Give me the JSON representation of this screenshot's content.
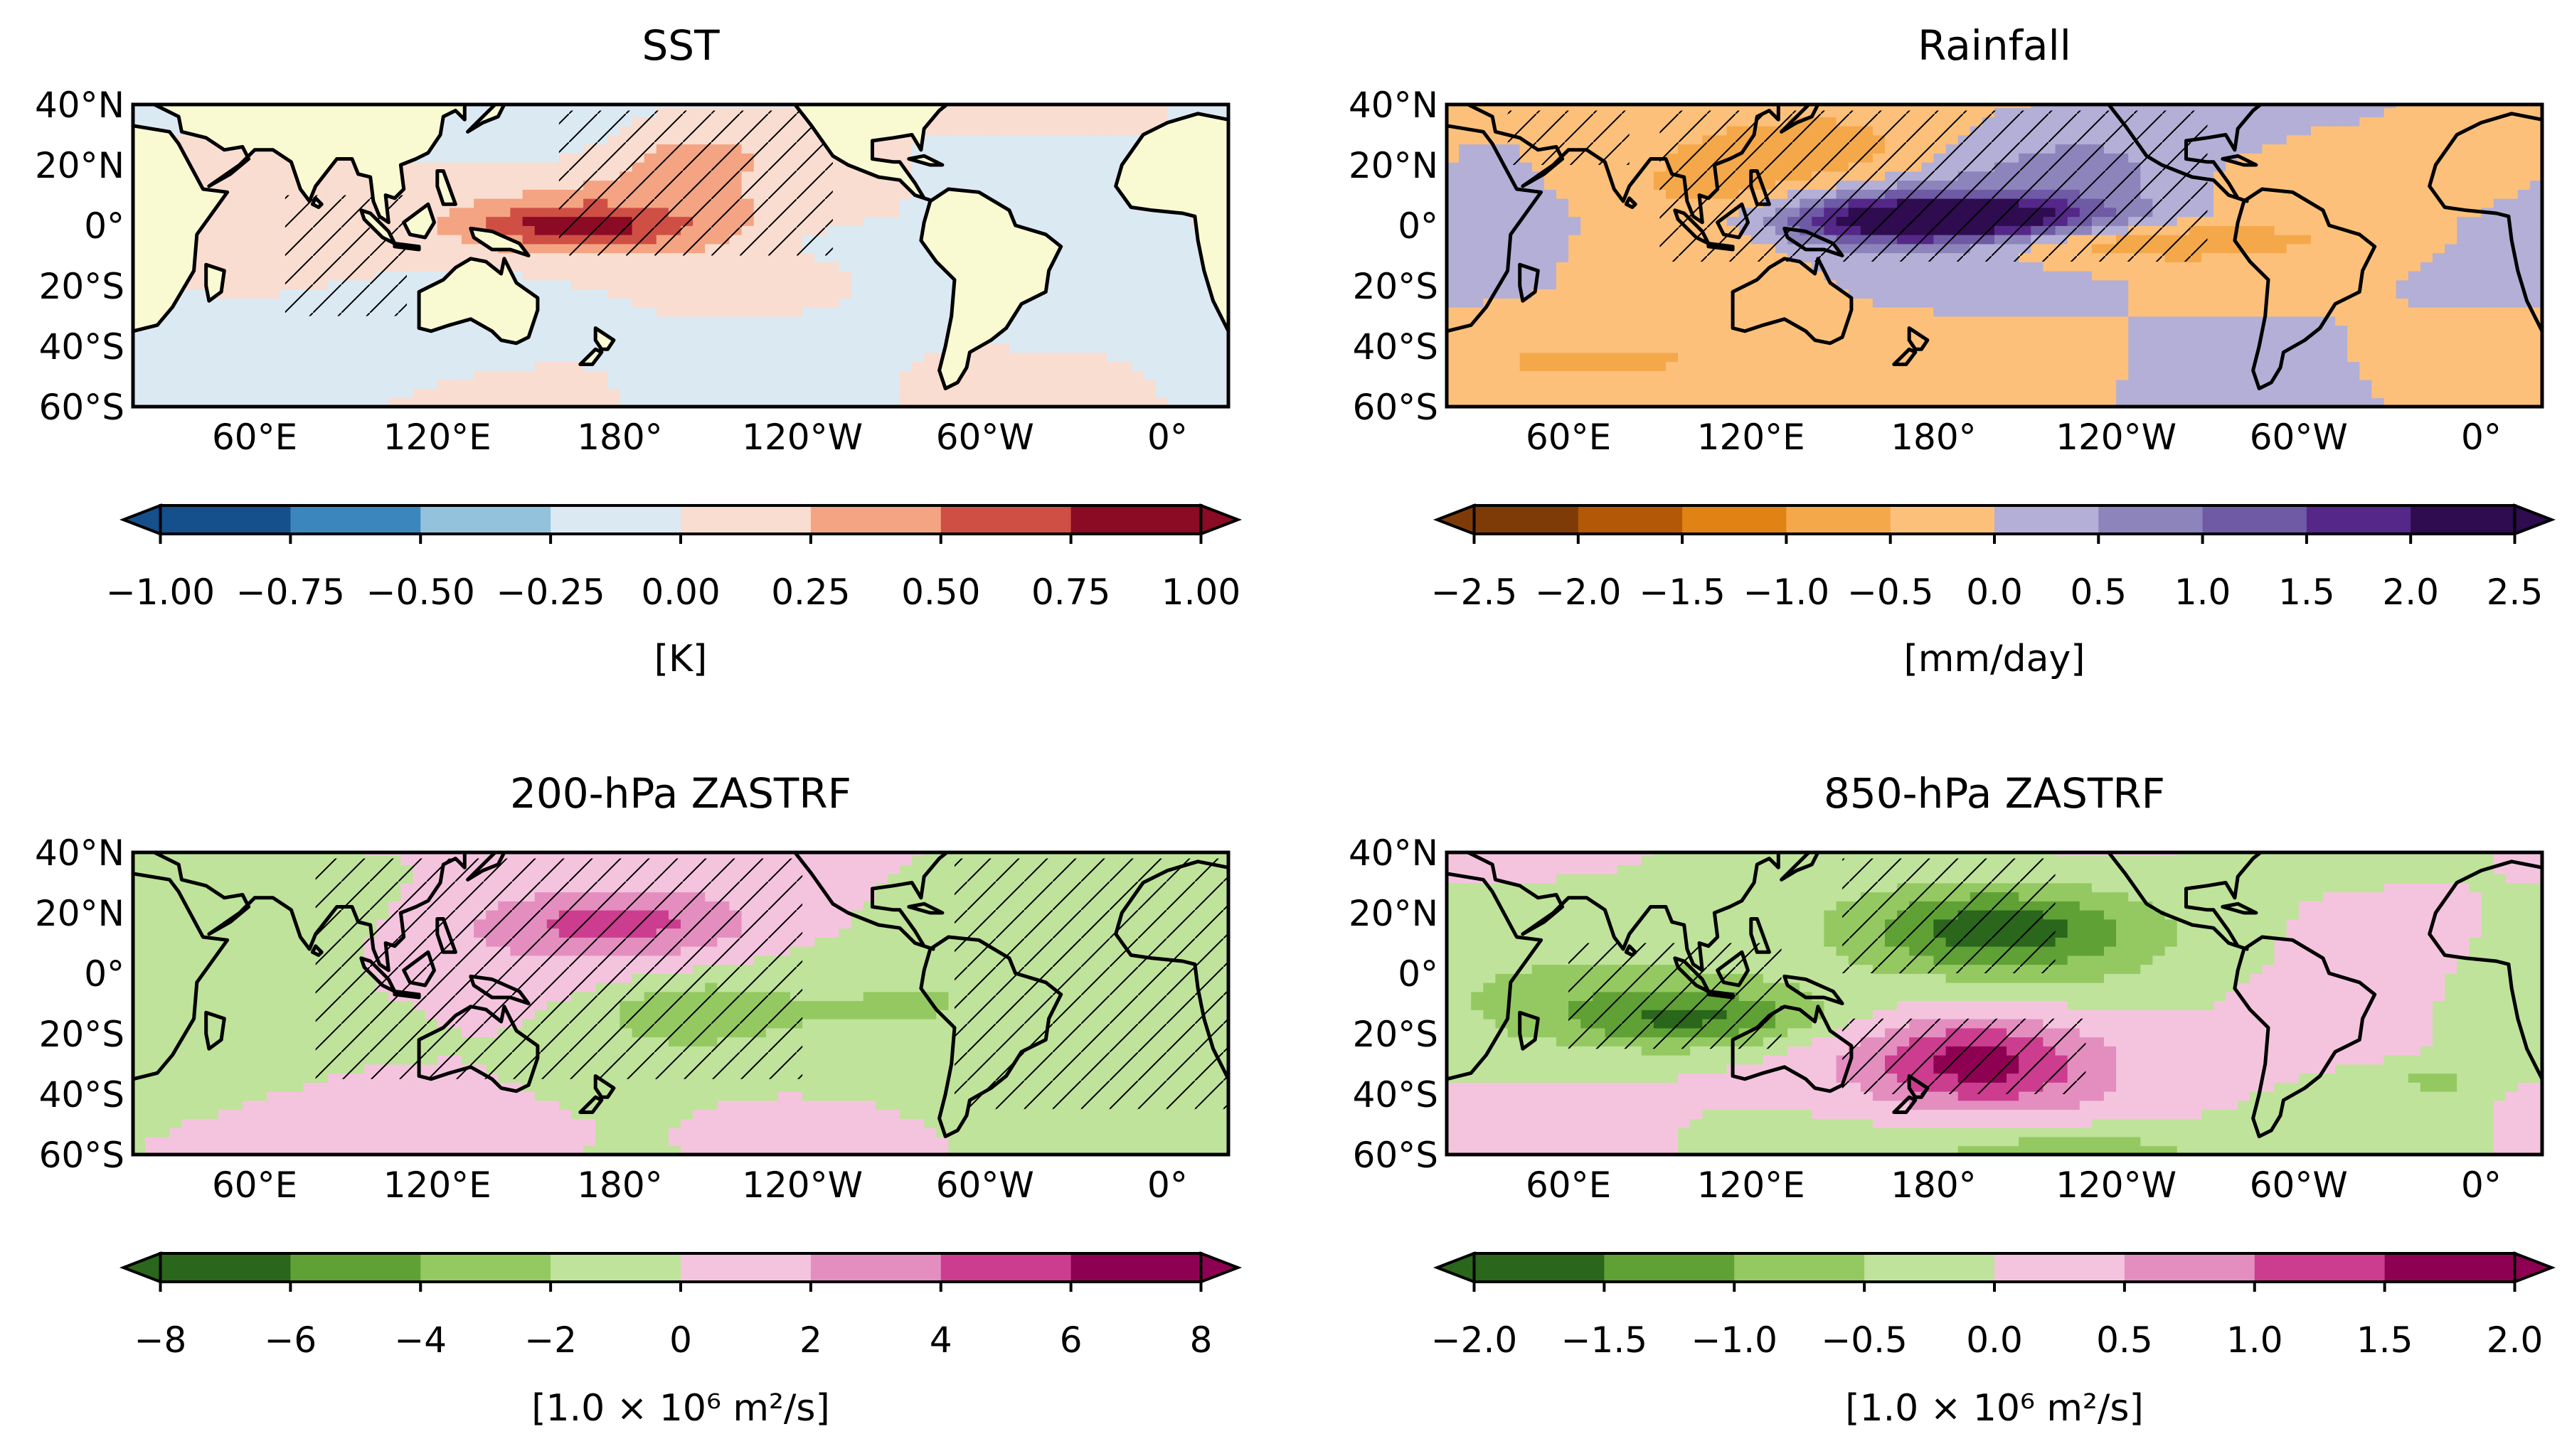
{
  "figure": {
    "description_hidden": false
  },
  "colors": {
    "rdbu": [
      "#154f8c",
      "#3b86bc",
      "#93c3dc",
      "#dbe9f3",
      "#f9ddd0",
      "#f4a482",
      "#cf4f44",
      "#8b0a24"
    ],
    "rdbu_zero_land": "#fafad2",
    "puor": [
      "#7e3b08",
      "#b35806",
      "#e08214",
      "#f4a84a",
      "#fdc07a",
      "#b3afd6",
      "#8c84bb",
      "#6e5aa5",
      "#542789",
      "#2e0c4f"
    ],
    "piyg": [
      "#2a661b",
      "#5fa135",
      "#94c962",
      "#bfe39a",
      "#f4c4de",
      "#e48ec0",
      "#cc3d8f",
      "#8e0152"
    ],
    "coast": "#000000",
    "hatch": "#000000"
  },
  "chart_data": [
    {
      "type": "heatmap",
      "title": "SST",
      "lon_labels": [
        "60°E",
        "120°E",
        "180°",
        "120°W",
        "60°W",
        "0°"
      ],
      "lat_labels": [
        "40°N",
        "20°N",
        "0°",
        "20°S",
        "40°S",
        "60°S"
      ],
      "xlim": [
        20,
        380
      ],
      "ylim": [
        -60,
        40
      ],
      "colorbar": {
        "ticks": [
          "−1.00",
          "−0.75",
          "−0.50",
          "−0.25",
          "0.00",
          "0.25",
          "0.50",
          "0.75",
          "1.00"
        ],
        "levels": [
          -1.0,
          -0.75,
          -0.5,
          -0.25,
          0.0,
          0.25,
          0.5,
          0.75,
          1.0
        ],
        "label": "[K]",
        "palette": "rdbu"
      },
      "fields": [
        {
          "lon": 165,
          "lat": 0,
          "value": 0.62,
          "sx": 25,
          "sy": 5
        },
        {
          "lon": 165,
          "lat": 3,
          "value": 0.35,
          "sx": 45,
          "sy": 12
        },
        {
          "lon": 200,
          "lat": 25,
          "value": 0.3,
          "sx": 25,
          "sy": 8
        },
        {
          "lon": 160,
          "lat": 30,
          "value": -0.25,
          "sx": 25,
          "sy": 8
        },
        {
          "lon": 90,
          "lat": -42,
          "value": -0.15,
          "sx": 35,
          "sy": 10
        },
        {
          "lon": 330,
          "lat": -20,
          "value": -0.12,
          "sx": 40,
          "sy": 15
        },
        {
          "lon": 140,
          "lat": -30,
          "value": -0.1,
          "sx": 25,
          "sy": 10
        },
        {
          "lon": 250,
          "lat": -5,
          "value": -0.15,
          "sx": 15,
          "sy": 5
        }
      ],
      "base": 0.08,
      "hatch": [
        {
          "lon0": 160,
          "lon1": 250,
          "lat0": -10,
          "lat1": 38
        },
        {
          "lon0": 70,
          "lon1": 110,
          "lat0": -30,
          "lat1": 10
        }
      ]
    },
    {
      "type": "heatmap",
      "title": "Rainfall",
      "lon_labels": [
        "60°E",
        "120°E",
        "180°",
        "120°W",
        "60°W",
        "0°"
      ],
      "lat_labels": [
        "40°N",
        "20°N",
        "0°",
        "20°S",
        "40°S",
        "60°S"
      ],
      "xlim": [
        20,
        380
      ],
      "ylim": [
        -60,
        40
      ],
      "colorbar": {
        "ticks": [
          "−2.5",
          "−2.0",
          "−1.5",
          "−1.0",
          "−0.5",
          "0.0",
          "0.5",
          "1.0",
          "1.5",
          "2.0",
          "2.5"
        ],
        "levels": [
          -2.5,
          -2.0,
          -1.5,
          -1.0,
          -0.5,
          0.0,
          0.5,
          1.0,
          1.5,
          2.0,
          2.5
        ],
        "label": "[mm/day]",
        "palette": "puor"
      },
      "fields": [
        {
          "lon": 185,
          "lat": 2,
          "value": 2.3,
          "sx": 35,
          "sy": 5
        },
        {
          "lon": 165,
          "lat": 2,
          "value": 1.2,
          "sx": 50,
          "sy": 9
        },
        {
          "lon": 240,
          "lat": -5,
          "value": -1.1,
          "sx": 45,
          "sy": 5
        },
        {
          "lon": 110,
          "lat": 5,
          "value": -0.9,
          "sx": 25,
          "sy": 14
        },
        {
          "lon": 145,
          "lat": 25,
          "value": -0.8,
          "sx": 30,
          "sy": 10
        },
        {
          "lon": 80,
          "lat": -45,
          "value": -0.6,
          "sx": 50,
          "sy": 8
        },
        {
          "lon": 310,
          "lat": 15,
          "value": -0.5,
          "sx": 35,
          "sy": 8
        },
        {
          "lon": 230,
          "lat": 20,
          "value": 0.6,
          "sx": 40,
          "sy": 10
        }
      ],
      "base": 0.1,
      "hatch": [
        {
          "lon0": 90,
          "lon1": 270,
          "lat0": -12,
          "lat1": 38
        },
        {
          "lon0": 40,
          "lon1": 80,
          "lat0": 20,
          "lat1": 38
        }
      ]
    },
    {
      "type": "heatmap",
      "title": "200-hPa ZASTRF",
      "lon_labels": [
        "60°E",
        "120°E",
        "180°",
        "120°W",
        "60°W",
        "0°"
      ],
      "lat_labels": [
        "40°N",
        "20°N",
        "0°",
        "20°S",
        "40°S",
        "60°S"
      ],
      "xlim": [
        20,
        380
      ],
      "ylim": [
        -60,
        40
      ],
      "colorbar": {
        "ticks": [
          "−8",
          "−6",
          "−4",
          "−2",
          "0",
          "2",
          "4",
          "6",
          "8"
        ],
        "levels": [
          -8,
          -6,
          -4,
          -2,
          0,
          2,
          4,
          6,
          8
        ],
        "label": "[1.0 × 10⁶ m²/s]",
        "palette": "piyg"
      },
      "fields": [
        {
          "lon": 180,
          "lat": 17,
          "value": 3.2,
          "sx": 30,
          "sy": 7
        },
        {
          "lon": 175,
          "lat": 12,
          "value": 1.5,
          "sx": 70,
          "sy": 18
        },
        {
          "lon": 200,
          "lat": -13,
          "value": -3.0,
          "sx": 20,
          "sy": 8
        },
        {
          "lon": 225,
          "lat": -10,
          "value": -1.5,
          "sx": 60,
          "sy": 12
        },
        {
          "lon": 60,
          "lat": 25,
          "value": -1.5,
          "sx": 40,
          "sy": 12
        },
        {
          "lon": 320,
          "lat": -5,
          "value": -1.4,
          "sx": 50,
          "sy": 30
        },
        {
          "lon": 100,
          "lat": -55,
          "value": 1.0,
          "sx": 60,
          "sy": 10
        },
        {
          "lon": 40,
          "lat": -30,
          "value": -1.0,
          "sx": 25,
          "sy": 15
        }
      ],
      "base": 0.5,
      "hatch": [
        {
          "lon0": 80,
          "lon1": 240,
          "lat0": -35,
          "lat1": 38
        },
        {
          "lon0": 290,
          "lon1": 380,
          "lat0": -45,
          "lat1": 38
        }
      ]
    },
    {
      "type": "heatmap",
      "title": "850-hPa ZASTRF",
      "lon_labels": [
        "60°E",
        "120°E",
        "180°",
        "120°W",
        "60°W",
        "0°"
      ],
      "lat_labels": [
        "40°N",
        "20°N",
        "0°",
        "20°S",
        "40°S",
        "60°S"
      ],
      "xlim": [
        20,
        380
      ],
      "ylim": [
        -60,
        40
      ],
      "colorbar": {
        "ticks": [
          "−2.0",
          "−1.5",
          "−1.0",
          "−0.5",
          "0.0",
          "0.5",
          "1.0",
          "1.5",
          "2.0"
        ],
        "levels": [
          -2.0,
          -1.5,
          -1.0,
          -0.5,
          0.0,
          0.5,
          1.0,
          1.5,
          2.0
        ],
        "label": "[1.0 × 10⁶ m²/s]",
        "palette": "piyg"
      },
      "fields": [
        {
          "lon": 200,
          "lat": 15,
          "value": -1.2,
          "sx": 30,
          "sy": 9
        },
        {
          "lon": 190,
          "lat": 12,
          "value": -0.6,
          "sx": 55,
          "sy": 15
        },
        {
          "lon": 105,
          "lat": -15,
          "value": -1.2,
          "sx": 30,
          "sy": 7
        },
        {
          "lon": 90,
          "lat": -10,
          "value": -0.6,
          "sx": 55,
          "sy": 12
        },
        {
          "lon": 195,
          "lat": -30,
          "value": 1.2,
          "sx": 25,
          "sy": 10
        },
        {
          "lon": 185,
          "lat": -25,
          "value": 0.6,
          "sx": 50,
          "sy": 15
        },
        {
          "lon": 345,
          "lat": -35,
          "value": -0.8,
          "sx": 8,
          "sy": 3
        },
        {
          "lon": 225,
          "lat": -58,
          "value": -0.9,
          "sx": 40,
          "sy": 6
        }
      ],
      "base": 0.2,
      "hatch": [
        {
          "lon0": 150,
          "lon1": 220,
          "lat0": 0,
          "lat1": 38
        },
        {
          "lon0": 60,
          "lon1": 130,
          "lat0": -25,
          "lat1": 10
        },
        {
          "lon0": 150,
          "lon1": 230,
          "lat0": -40,
          "lat1": -15
        }
      ]
    }
  ]
}
